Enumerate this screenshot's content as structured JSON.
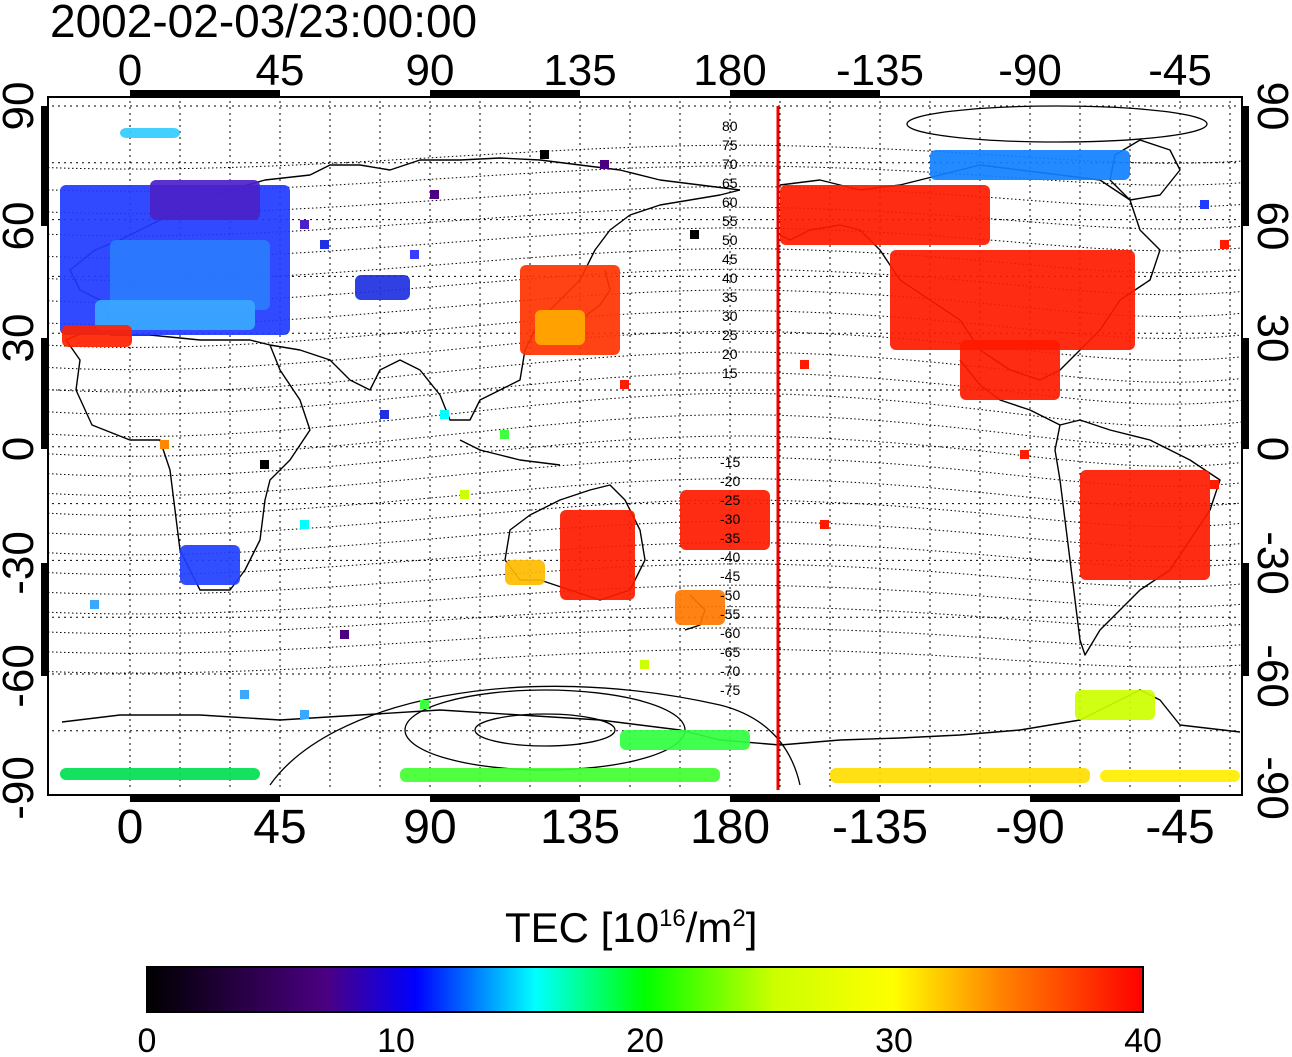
{
  "timestamp": "2002-02-03/23:00:00",
  "map": {
    "x_ticks": [
      "0",
      "45",
      "90",
      "135",
      "180",
      "-135",
      "-90",
      "-45"
    ],
    "y_ticks": [
      "90",
      "60",
      "30",
      "0",
      "-30",
      "-60",
      "-90"
    ],
    "marker_color": "#ee0000",
    "contour_labels_north": [
      "80",
      "75",
      "70",
      "65",
      "60",
      "55",
      "50",
      "45",
      "40",
      "35",
      "30",
      "25",
      "20",
      "15"
    ],
    "contour_labels_south": [
      "-15",
      "-20",
      "-25",
      "-30",
      "-35",
      "-40",
      "-45",
      "-50",
      "-55",
      "-60",
      "-65",
      "-70",
      "-75"
    ]
  },
  "colorbar": {
    "title_main": "TEC  [10",
    "title_exp1": "16",
    "title_mid": "/m",
    "title_exp2": "2",
    "title_end": "]",
    "ticks": [
      "0",
      "10",
      "20",
      "30",
      "40"
    ],
    "colors": [
      "#000000",
      "#4b0082",
      "#0000ff",
      "#00ffff",
      "#00ff00",
      "#ffff00",
      "#ff8000",
      "#ff0000"
    ]
  }
}
